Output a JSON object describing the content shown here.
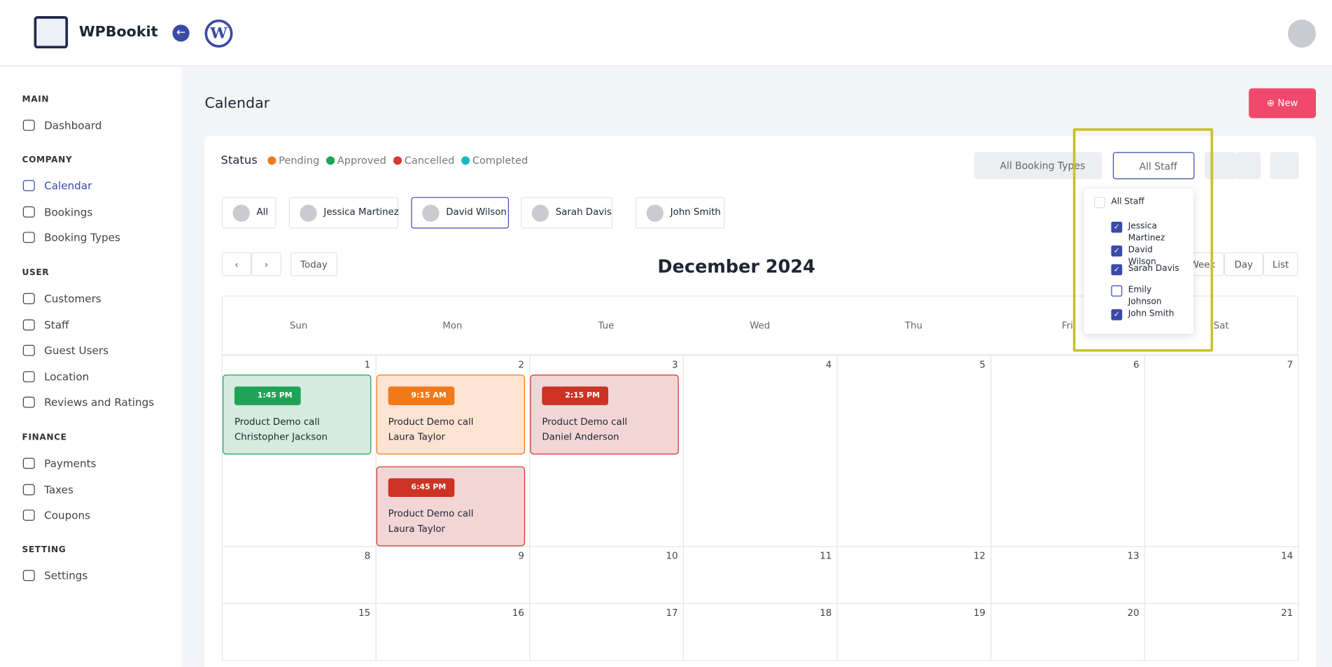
{
  "header": {
    "brand": "WPBookit"
  },
  "sidebar": [
    {
      "title": "MAIN",
      "items": [
        "Dashboard"
      ]
    },
    {
      "title": "COMPANY",
      "items": [
        "Calendar",
        "Bookings",
        "Booking Types"
      ]
    },
    {
      "title": "USER",
      "items": [
        "Customers",
        "Staff",
        "Guest Users",
        "Location",
        "Reviews and Ratings"
      ]
    },
    {
      "title": "FINANCE",
      "items": [
        "Payments",
        "Taxes",
        "Coupons"
      ]
    },
    {
      "title": "SETTING",
      "items": [
        "Settings"
      ]
    }
  ],
  "active_item": "Calendar",
  "page": {
    "title": "Calendar",
    "new_button": "New"
  },
  "status": {
    "label": "Status",
    "items": [
      {
        "name": "Pending",
        "color": "#f07a1a"
      },
      {
        "name": "Approved",
        "color": "#1fa356"
      },
      {
        "name": "Cancelled",
        "color": "#d33a2c"
      },
      {
        "name": "Completed",
        "color": "#17b9c4"
      }
    ]
  },
  "toolbar": {
    "booking_types": "All Booking Types",
    "staff": "All Staff"
  },
  "staff_chips": [
    {
      "name": "All",
      "selected": false
    },
    {
      "name": "Jessica Martinez",
      "selected": false
    },
    {
      "name": "David Wilson",
      "selected": true
    },
    {
      "name": "Sarah Davis",
      "selected": false
    },
    {
      "name": "John Smith",
      "selected": false
    }
  ],
  "staff_dropdown": [
    {
      "name": "All Staff",
      "checked": false
    },
    {
      "name": "Jessica Martinez",
      "checked": true
    },
    {
      "name": "David Wilson",
      "checked": true
    },
    {
      "name": "Sarah Davis",
      "checked": true
    },
    {
      "name": "Emily Johnson",
      "checked": false
    },
    {
      "name": "John Smith",
      "checked": true
    }
  ],
  "calendar": {
    "today": "Today",
    "month": "December 2024",
    "views": [
      "Week",
      "Day",
      "List"
    ],
    "weekdays": [
      "Sun",
      "Mon",
      "Tue",
      "Wed",
      "Thu",
      "Fri",
      "Sat"
    ],
    "weeks": [
      [
        1,
        2,
        3,
        4,
        5,
        6,
        7
      ],
      [
        8,
        9,
        10,
        11,
        12,
        13,
        14
      ],
      [
        15,
        16,
        17,
        18,
        19,
        20,
        21
      ]
    ],
    "events": [
      {
        "day_index": 0,
        "slot": 0,
        "time": "1:45 PM",
        "title": "Product Demo call",
        "person": "Christopher Jackson",
        "color": "#1fa356",
        "bg": "#d3ecdf"
      },
      {
        "day_index": 1,
        "slot": 0,
        "time": "9:15 AM",
        "title": "Product Demo call",
        "person": "Laura Taylor",
        "color": "#f07a1a",
        "bg": "#fde3d2"
      },
      {
        "day_index": 1,
        "slot": 1,
        "time": "6:45 PM",
        "title": "Product Demo call",
        "person": "Laura Taylor",
        "color": "#cc3325",
        "bg": "#f2d6d6"
      },
      {
        "day_index": 2,
        "slot": 0,
        "time": "2:15 PM",
        "title": "Product Demo call",
        "person": "Daniel Anderson",
        "color": "#cc3325",
        "bg": "#f2d6d6"
      }
    ]
  }
}
